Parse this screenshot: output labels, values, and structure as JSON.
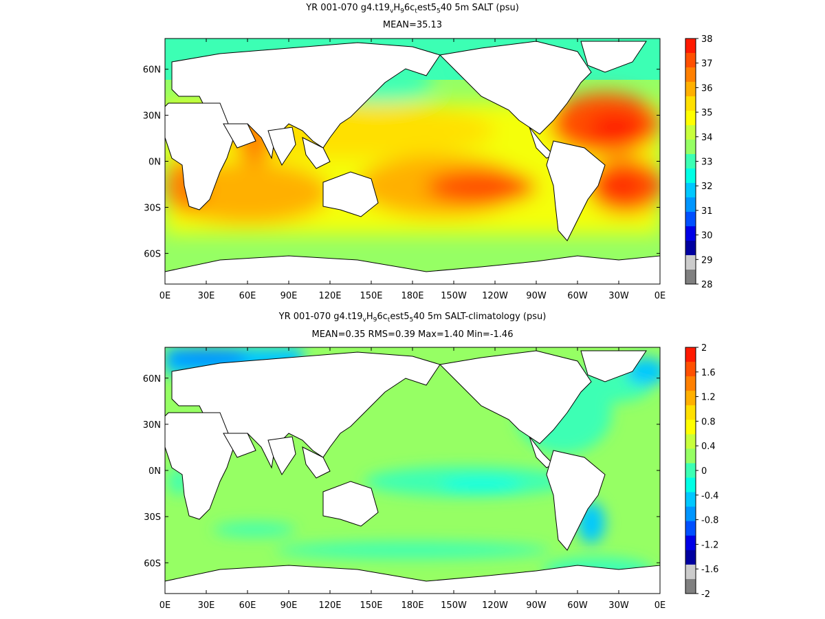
{
  "top_panel": {
    "title": {
      "a": "YR 001-070 g4.t19",
      "s1": "v",
      "b": "H",
      "s2": "9",
      "c": "6c",
      "s3": "t",
      "d": "est5",
      "s4": "5",
      "e": "40 5m SALT (psu)"
    },
    "subtitle": "MEAN=35.13",
    "x_ticks": [
      "0E",
      "30E",
      "60E",
      "90E",
      "120E",
      "150E",
      "180E",
      "150W",
      "120W",
      "90W",
      "60W",
      "30W",
      "0E"
    ],
    "y_ticks": [
      "60N",
      "30N",
      "0N",
      "30S",
      "60S"
    ],
    "colorbar_labels": [
      "38",
      "37",
      "36",
      "35",
      "34",
      "33",
      "32",
      "31",
      "30",
      "29",
      "28"
    ]
  },
  "bottom_panel": {
    "title": {
      "a": "YR 001-070 g4.t19",
      "s1": "v",
      "b": "H",
      "s2": "9",
      "c": "6c",
      "s3": "t",
      "d": "est5",
      "s4": "5",
      "e": "40 5m SALT-climatology (psu)"
    },
    "subtitle": "MEAN=0.35   RMS=0.39   Max=1.40   Min=-1.46",
    "x_ticks": [
      "0E",
      "30E",
      "60E",
      "90E",
      "120E",
      "150E",
      "180E",
      "150W",
      "120W",
      "90W",
      "60W",
      "30W",
      "0E"
    ],
    "y_ticks": [
      "60N",
      "30N",
      "0N",
      "30S",
      "60S"
    ],
    "colorbar_labels": [
      "2",
      "1.6",
      "1.2",
      "0.8",
      "0.4",
      "0",
      "-0.4",
      "-0.8",
      "-1.2",
      "-1.6",
      "-2"
    ]
  },
  "colors": {
    "scale": [
      "#ff1a00",
      "#ff5000",
      "#ff8000",
      "#ffb000",
      "#ffe000",
      "#ffff00",
      "#c8ff3c",
      "#96ff64",
      "#3cffb4",
      "#00ffe6",
      "#00c8ff",
      "#0096ff",
      "#0050ff",
      "#0000e6",
      "#0000a0",
      "#cccccc",
      "#808080"
    ],
    "land": "#ffffff",
    "frame": "#000000"
  }
}
